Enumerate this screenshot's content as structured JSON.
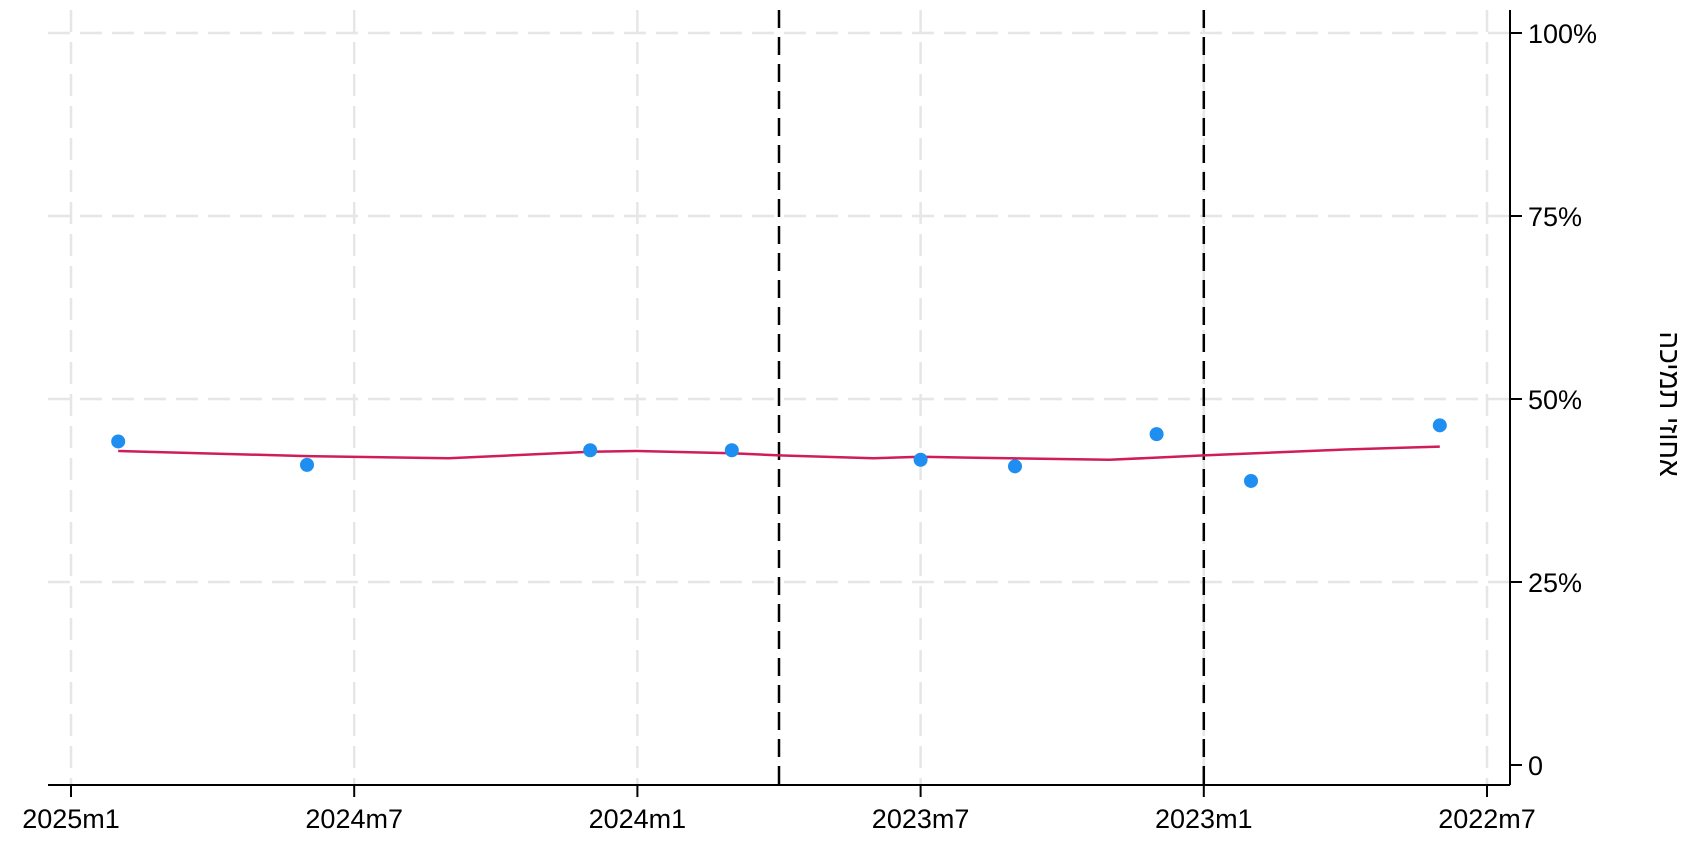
{
  "chart_data": {
    "type": "scatter",
    "x_axis": {
      "reversed": true,
      "ticks": [
        "2025m1",
        "2024m7",
        "2024m1",
        "2023m7",
        "2023m1",
        "2022m7"
      ],
      "range": [
        "2025m1",
        "2022m7"
      ]
    },
    "y_axis": {
      "label": "אחוזי תמיכה",
      "position": "right",
      "ticks": [
        "0",
        "25%",
        "50%",
        "75%",
        "100%"
      ],
      "tick_values": [
        0,
        25,
        50,
        75,
        100
      ],
      "range": [
        0,
        100
      ]
    },
    "grid": "dashed",
    "reference_lines": [
      {
        "x": "2023m10",
        "style": "dashed"
      },
      {
        "x": "2023m1",
        "style": "dashed"
      }
    ],
    "series": [
      {
        "kind": "points",
        "color": "#1f8ef1",
        "points": [
          {
            "x": "2024m12",
            "y": 44.2
          },
          {
            "x": "2024m8",
            "y": 41.0
          },
          {
            "x": "2024m2",
            "y": 43.0
          },
          {
            "x": "2023m11",
            "y": 43.0
          },
          {
            "x": "2023m7",
            "y": 41.7
          },
          {
            "x": "2023m5",
            "y": 40.8
          },
          {
            "x": "2023m2",
            "y": 45.2
          },
          {
            "x": "2022m12",
            "y": 38.8
          },
          {
            "x": "2022m8",
            "y": 46.4
          }
        ]
      },
      {
        "kind": "smoothed-line",
        "color": "#d01c5b",
        "points": [
          {
            "x": "2024m12",
            "y": 42.9
          },
          {
            "x": "2024m8",
            "y": 42.2
          },
          {
            "x": "2024m5",
            "y": 41.9
          },
          {
            "x": "2024m2",
            "y": 42.8
          },
          {
            "x": "2024m1",
            "y": 42.9
          },
          {
            "x": "2023m11",
            "y": 42.6
          },
          {
            "x": "2023m10",
            "y": 42.3
          },
          {
            "x": "2023m8",
            "y": 41.9
          },
          {
            "x": "2023m7",
            "y": 42.1
          },
          {
            "x": "2023m6",
            "y": 42.0
          },
          {
            "x": "2023m3",
            "y": 41.7
          },
          {
            "x": "2023m1",
            "y": 42.3
          },
          {
            "x": "2022m10",
            "y": 43.1
          },
          {
            "x": "2022m8",
            "y": 43.5
          }
        ]
      }
    ]
  }
}
